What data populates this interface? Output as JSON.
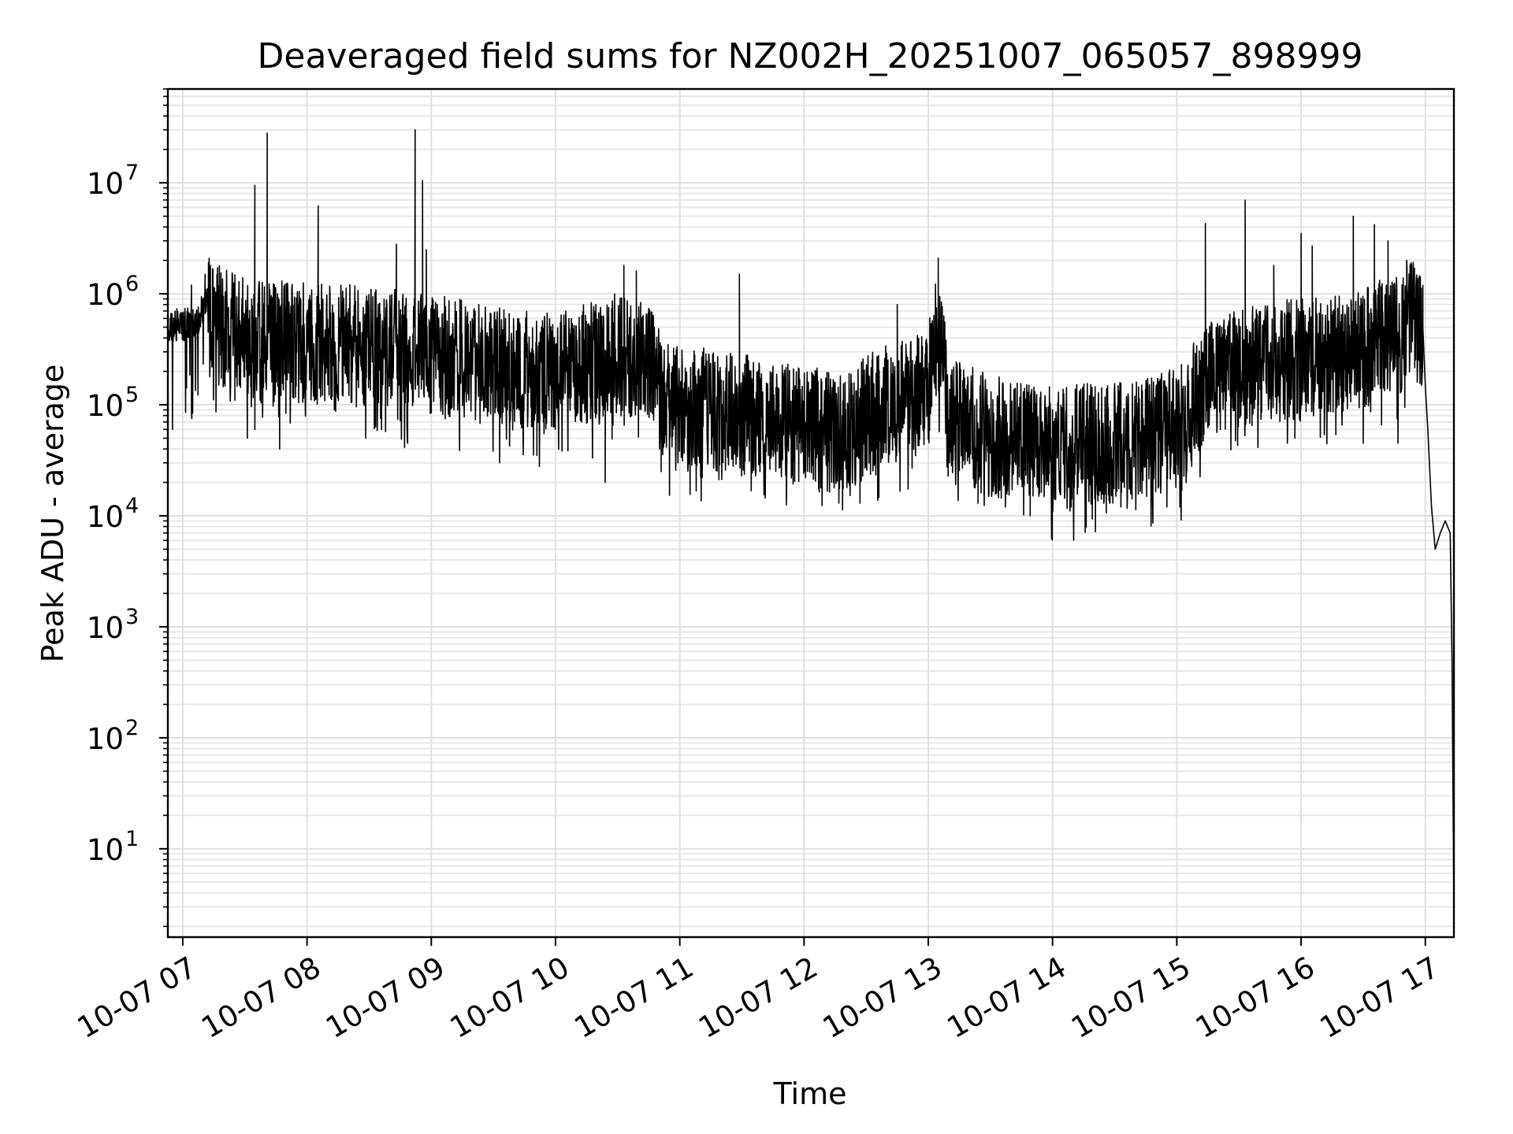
{
  "chart_data": {
    "type": "line",
    "title": "Deaveraged field sums for NZ002H_20251007_065057_898999",
    "xlabel": "Time",
    "ylabel": "Peak ADU - average",
    "yscale": "log",
    "ylim": [
      1.6,
      70000000
    ],
    "xlim_hours": [
      6.88,
      17.23
    ],
    "grid": "on",
    "line_color": "#000000",
    "x_ticks": [
      {
        "hour": 7,
        "label": "10-07 07"
      },
      {
        "hour": 8,
        "label": "10-07 08"
      },
      {
        "hour": 9,
        "label": "10-07 09"
      },
      {
        "hour": 10,
        "label": "10-07 10"
      },
      {
        "hour": 11,
        "label": "10-07 11"
      },
      {
        "hour": 12,
        "label": "10-07 12"
      },
      {
        "hour": 13,
        "label": "10-07 13"
      },
      {
        "hour": 14,
        "label": "10-07 14"
      },
      {
        "hour": 15,
        "label": "10-07 15"
      },
      {
        "hour": 16,
        "label": "10-07 16"
      },
      {
        "hour": 17,
        "label": "10-07 17"
      }
    ],
    "y_ticks": [
      {
        "value": 10,
        "base": "10",
        "exp": "1"
      },
      {
        "value": 100,
        "base": "10",
        "exp": "2"
      },
      {
        "value": 1000,
        "base": "10",
        "exp": "3"
      },
      {
        "value": 10000,
        "base": "10",
        "exp": "4"
      },
      {
        "value": 100000,
        "base": "10",
        "exp": "5"
      },
      {
        "value": 1000000,
        "base": "10",
        "exp": "6"
      },
      {
        "value": 10000000,
        "base": "10",
        "exp": "7"
      }
    ],
    "series": [
      {
        "name": "deaveraged field sum",
        "baseline": [
          [
            6.88,
            550000
          ],
          [
            7.1,
            600000
          ],
          [
            7.2,
            900000
          ],
          [
            7.3,
            700000
          ],
          [
            7.6,
            500000
          ],
          [
            8.0,
            500000
          ],
          [
            8.5,
            450000
          ],
          [
            9.0,
            380000
          ],
          [
            9.5,
            300000
          ],
          [
            10.0,
            250000
          ],
          [
            10.5,
            400000
          ],
          [
            10.8,
            300000
          ],
          [
            10.85,
            150000
          ],
          [
            11.5,
            110000
          ],
          [
            12.0,
            90000
          ],
          [
            12.3,
            70000
          ],
          [
            12.6,
            130000
          ],
          [
            13.0,
            180000
          ],
          [
            13.05,
            500000
          ],
          [
            13.12,
            350000
          ],
          [
            13.15,
            110000
          ],
          [
            13.5,
            70000
          ],
          [
            14.0,
            60000
          ],
          [
            14.4,
            60000
          ],
          [
            14.8,
            70000
          ],
          [
            15.05,
            90000
          ],
          [
            15.2,
            200000
          ],
          [
            15.5,
            300000
          ],
          [
            16.0,
            350000
          ],
          [
            16.5,
            450000
          ],
          [
            16.8,
            600000
          ],
          [
            16.93,
            900000
          ],
          [
            16.98,
            600000
          ]
        ],
        "tail": [
          [
            16.98,
            500000
          ],
          [
            17.0,
            150000
          ],
          [
            17.02,
            60000
          ],
          [
            17.05,
            12000
          ],
          [
            17.08,
            5000
          ],
          [
            17.12,
            7000
          ],
          [
            17.16,
            9000
          ],
          [
            17.2,
            7000
          ],
          [
            17.215,
            500
          ],
          [
            17.225,
            15
          ],
          [
            17.23,
            4
          ]
        ],
        "spikes": [
          [
            7.07,
            1200000
          ],
          [
            7.18,
            1500000
          ],
          [
            7.58,
            9500000
          ],
          [
            7.68,
            28000000
          ],
          [
            8.09,
            6200000
          ],
          [
            8.72,
            2800000
          ],
          [
            8.87,
            30000000
          ],
          [
            8.93,
            10500000
          ],
          [
            8.96,
            2500000
          ],
          [
            10.55,
            1800000
          ],
          [
            10.65,
            1600000
          ],
          [
            11.48,
            1500000
          ],
          [
            12.75,
            800000
          ],
          [
            13.08,
            2100000
          ],
          [
            15.23,
            4300000
          ],
          [
            15.55,
            7000000
          ],
          [
            15.78,
            1800000
          ],
          [
            16.0,
            3500000
          ],
          [
            16.09,
            2700000
          ],
          [
            16.42,
            5000000
          ],
          [
            16.59,
            4200000
          ],
          [
            16.7,
            3000000
          ],
          [
            16.85,
            2000000
          ]
        ],
        "dips": [
          [
            7.42,
            110000
          ],
          [
            7.52,
            50000
          ],
          [
            7.78,
            40000
          ],
          [
            8.22,
            90000
          ],
          [
            8.6,
            60000
          ],
          [
            8.81,
            45000
          ],
          [
            9.55,
            30000
          ],
          [
            9.85,
            35000
          ],
          [
            10.4,
            20000
          ],
          [
            10.85,
            25000
          ],
          [
            11.18,
            22000
          ],
          [
            11.65,
            30000
          ],
          [
            12.12,
            20000
          ],
          [
            12.28,
            13000
          ],
          [
            12.45,
            13000
          ],
          [
            13.4,
            13000
          ],
          [
            13.62,
            12000
          ],
          [
            13.82,
            10000
          ],
          [
            14.15,
            12000
          ],
          [
            14.55,
            12000
          ],
          [
            14.92,
            12000
          ],
          [
            15.95,
            50000
          ],
          [
            16.5,
            45000
          ],
          [
            16.78,
            45000
          ]
        ]
      }
    ]
  }
}
